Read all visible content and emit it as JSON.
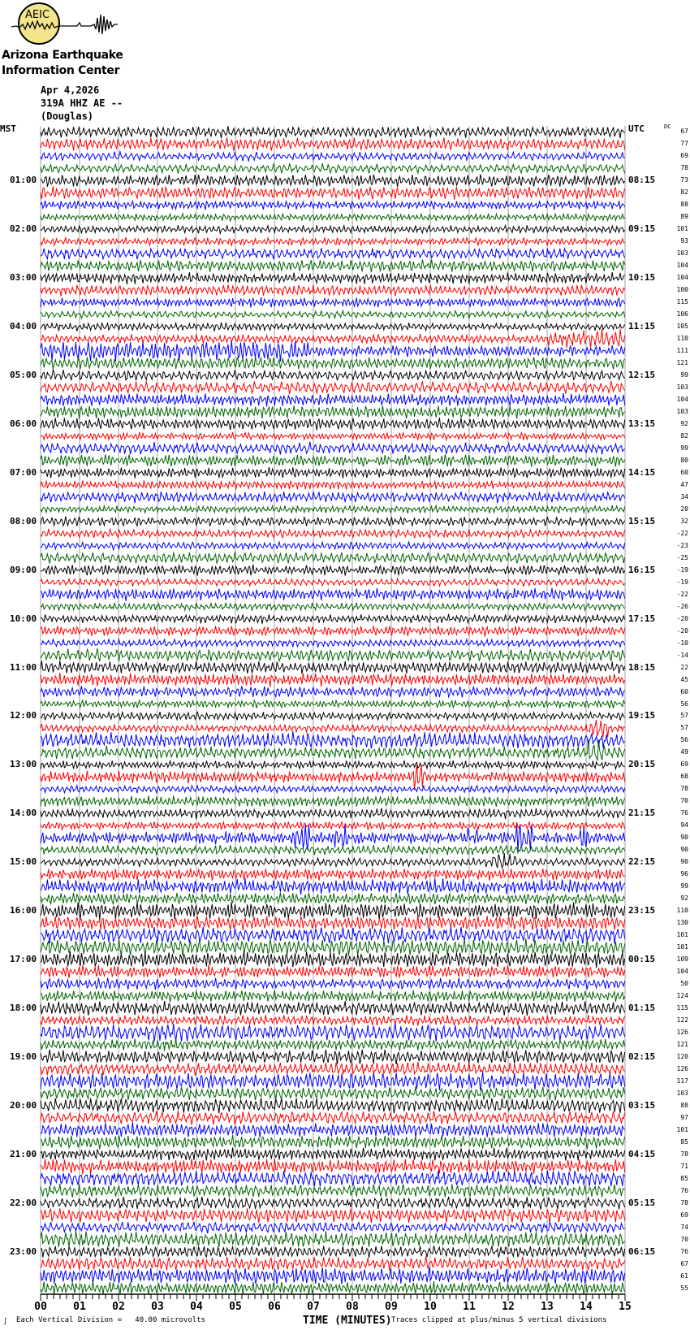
{
  "logo": {
    "acronym": "AEIC",
    "line1": "Arizona Earthquake",
    "line2": "Information Center",
    "circle_color": "#f3e58c"
  },
  "header": {
    "date": "Apr 4,2026",
    "channel": "319A HHZ AE --",
    "location": "(Douglas)"
  },
  "left_timezone": "MST",
  "right_timezone": "UTC",
  "dc_label": "DC",
  "footer": {
    "scale": "Each Vertical Division =   40.00 microvolts",
    "xlabel": "TIME (MINUTES)",
    "clip_note": "Traces clipped at plus/minus 5 vertical divisions"
  },
  "chart_data": {
    "type": "line",
    "subtype": "helicorder",
    "xlabel": "TIME (MINUTES)",
    "xlim": [
      0,
      15
    ],
    "x_ticks": [
      "00",
      "01",
      "02",
      "03",
      "04",
      "05",
      "06",
      "07",
      "08",
      "09",
      "10",
      "11",
      "12",
      "13",
      "14",
      "15"
    ],
    "grid": "vertical lines each minute",
    "trace_colors": [
      "#000000",
      "#ff0000",
      "#0000ff",
      "#006400"
    ],
    "traces_per_hour": 4,
    "mst_labels": [
      "01:00",
      "02:00",
      "03:00",
      "04:00",
      "05:00",
      "06:00",
      "07:00",
      "08:00",
      "09:00",
      "10:00",
      "11:00",
      "12:00",
      "13:00",
      "14:00",
      "15:00",
      "16:00",
      "17:00",
      "18:00",
      "19:00",
      "20:00",
      "21:00",
      "22:00",
      "23:00"
    ],
    "utc_labels": [
      "08:15",
      "09:15",
      "10:15",
      "11:15",
      "12:15",
      "13:15",
      "14:15",
      "15:15",
      "16:15",
      "17:15",
      "18:15",
      "19:15",
      "20:15",
      "21:15",
      "22:15",
      "23:15",
      "00:15",
      "01:15",
      "02:15",
      "03:15",
      "04:15",
      "05:15",
      "06:15"
    ],
    "dc_offsets": [
      67,
      77,
      69,
      78,
      73,
      82,
      88,
      89,
      101,
      93,
      103,
      104,
      104,
      100,
      115,
      106,
      105,
      110,
      111,
      121,
      99,
      103,
      104,
      103,
      92,
      82,
      99,
      80,
      60,
      47,
      34,
      20,
      32,
      -22,
      -23,
      -25,
      -19,
      -19,
      -22,
      -26,
      -20,
      -20,
      -10,
      -14,
      22,
      45,
      60,
      56,
      57,
      57,
      56,
      49,
      69,
      68,
      78,
      70,
      76,
      94,
      90,
      90,
      90,
      96,
      99,
      92,
      110,
      130,
      101,
      101,
      109,
      104,
      50,
      124,
      115,
      122,
      126,
      121,
      120,
      126,
      117,
      103,
      88,
      97,
      101,
      85,
      78,
      71,
      85,
      76,
      78,
      69,
      74,
      70,
      76,
      67,
      61,
      55
    ],
    "events": [
      {
        "trace": 17,
        "start_min": 13.0,
        "end_min": 15.0,
        "gain": 2.2
      },
      {
        "trace": 18,
        "start_min": 0.0,
        "end_min": 7.0,
        "gain": 1.8
      },
      {
        "trace": 49,
        "start_min": 14.0,
        "end_min": 14.6,
        "gain": 2.5
      },
      {
        "trace": 50,
        "start_min": 0.0,
        "end_min": 15.0,
        "gain": 1.9
      },
      {
        "trace": 51,
        "start_min": 14.0,
        "end_min": 14.5,
        "gain": 2.2
      },
      {
        "trace": 53,
        "start_min": 9.5,
        "end_min": 9.9,
        "gain": 3.0
      },
      {
        "trace": 58,
        "start_min": 6.5,
        "end_min": 6.9,
        "gain": 2.6
      },
      {
        "trace": 58,
        "start_min": 7.5,
        "end_min": 7.9,
        "gain": 2.0
      },
      {
        "trace": 58,
        "start_min": 10.9,
        "end_min": 11.2,
        "gain": 2.0
      },
      {
        "trace": 58,
        "start_min": 12.2,
        "end_min": 12.6,
        "gain": 3.0
      },
      {
        "trace": 58,
        "start_min": 13.8,
        "end_min": 14.1,
        "gain": 2.5
      },
      {
        "trace": 60,
        "start_min": 11.6,
        "end_min": 12.2,
        "gain": 2.0
      }
    ]
  }
}
